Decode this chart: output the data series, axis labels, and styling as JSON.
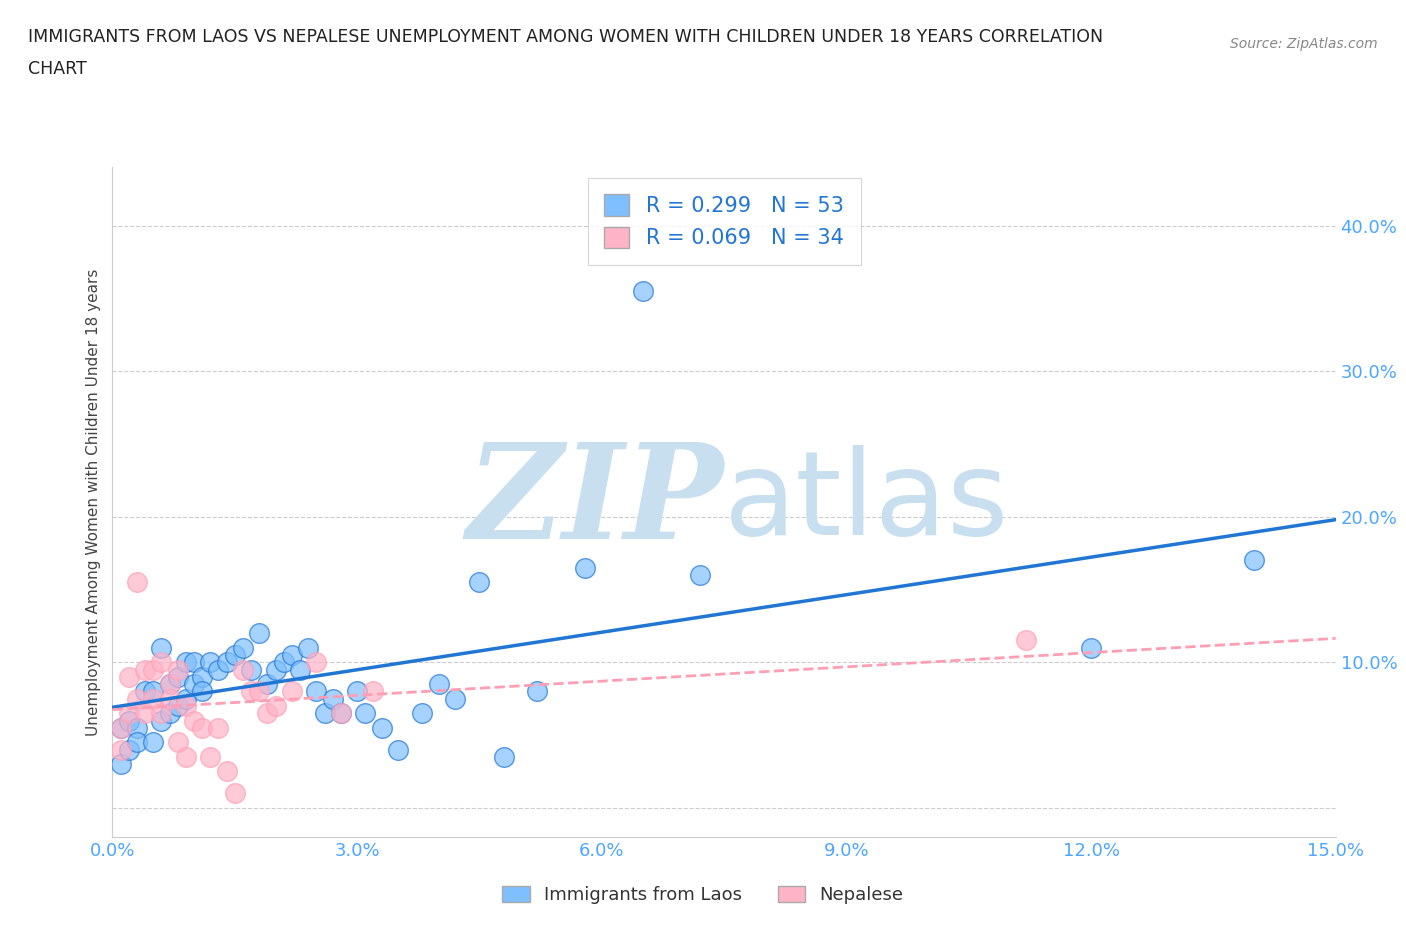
{
  "title_line1": "IMMIGRANTS FROM LAOS VS NEPALESE UNEMPLOYMENT AMONG WOMEN WITH CHILDREN UNDER 18 YEARS CORRELATION",
  "title_line2": "CHART",
  "source_text": "Source: ZipAtlas.com",
  "ylabel": "Unemployment Among Women with Children Under 18 years",
  "xlim": [
    0.0,
    0.15
  ],
  "ylim": [
    -0.02,
    0.44
  ],
  "xticks": [
    0.0,
    0.03,
    0.06,
    0.09,
    0.12,
    0.15
  ],
  "xtick_labels": [
    "0.0%",
    "3.0%",
    "6.0%",
    "9.0%",
    "12.0%",
    "15.0%"
  ],
  "yticks": [
    0.0,
    0.1,
    0.2,
    0.3,
    0.4
  ],
  "ytick_labels": [
    "",
    "10.0%",
    "20.0%",
    "30.0%",
    "40.0%"
  ],
  "color_blue": "#7fbfff",
  "color_pink": "#ffb3c6",
  "color_line_blue": "#2176d4",
  "color_line_pink": "#ff9eb5",
  "watermark_zip": "ZIP",
  "watermark_atlas": "atlas",
  "watermark_color_zip": "#c8dff0",
  "watermark_color_atlas": "#c8dff0",
  "grid_color": "#cccccc",
  "tick_color_blue": "#4da6ff",
  "tick_color_right": "#4da6ff",
  "spine_color": "#cccccc",
  "blue_x": [
    0.001,
    0.001,
    0.002,
    0.002,
    0.003,
    0.003,
    0.004,
    0.005,
    0.005,
    0.006,
    0.006,
    0.007,
    0.007,
    0.008,
    0.008,
    0.009,
    0.009,
    0.01,
    0.01,
    0.011,
    0.011,
    0.012,
    0.013,
    0.014,
    0.015,
    0.016,
    0.017,
    0.018,
    0.019,
    0.02,
    0.021,
    0.022,
    0.023,
    0.024,
    0.025,
    0.026,
    0.027,
    0.028,
    0.03,
    0.031,
    0.033,
    0.035,
    0.038,
    0.04,
    0.042,
    0.045,
    0.048,
    0.052,
    0.058,
    0.065,
    0.072,
    0.12,
    0.14
  ],
  "blue_y": [
    0.055,
    0.03,
    0.06,
    0.04,
    0.055,
    0.045,
    0.08,
    0.045,
    0.08,
    0.06,
    0.11,
    0.065,
    0.085,
    0.07,
    0.09,
    0.075,
    0.1,
    0.085,
    0.1,
    0.09,
    0.08,
    0.1,
    0.095,
    0.1,
    0.105,
    0.11,
    0.095,
    0.12,
    0.085,
    0.095,
    0.1,
    0.105,
    0.095,
    0.11,
    0.08,
    0.065,
    0.075,
    0.065,
    0.08,
    0.065,
    0.055,
    0.04,
    0.065,
    0.085,
    0.075,
    0.155,
    0.035,
    0.08,
    0.165,
    0.355,
    0.16,
    0.11,
    0.17
  ],
  "pink_x": [
    0.001,
    0.001,
    0.002,
    0.002,
    0.003,
    0.003,
    0.004,
    0.004,
    0.005,
    0.005,
    0.006,
    0.006,
    0.007,
    0.007,
    0.008,
    0.008,
    0.009,
    0.009,
    0.01,
    0.011,
    0.012,
    0.013,
    0.014,
    0.015,
    0.016,
    0.017,
    0.018,
    0.019,
    0.02,
    0.022,
    0.025,
    0.028,
    0.032,
    0.112
  ],
  "pink_y": [
    0.055,
    0.04,
    0.09,
    0.065,
    0.155,
    0.075,
    0.095,
    0.065,
    0.095,
    0.075,
    0.1,
    0.065,
    0.085,
    0.075,
    0.095,
    0.045,
    0.07,
    0.035,
    0.06,
    0.055,
    0.035,
    0.055,
    0.025,
    0.01,
    0.095,
    0.08,
    0.08,
    0.065,
    0.07,
    0.08,
    0.1,
    0.065,
    0.08,
    0.115
  ]
}
